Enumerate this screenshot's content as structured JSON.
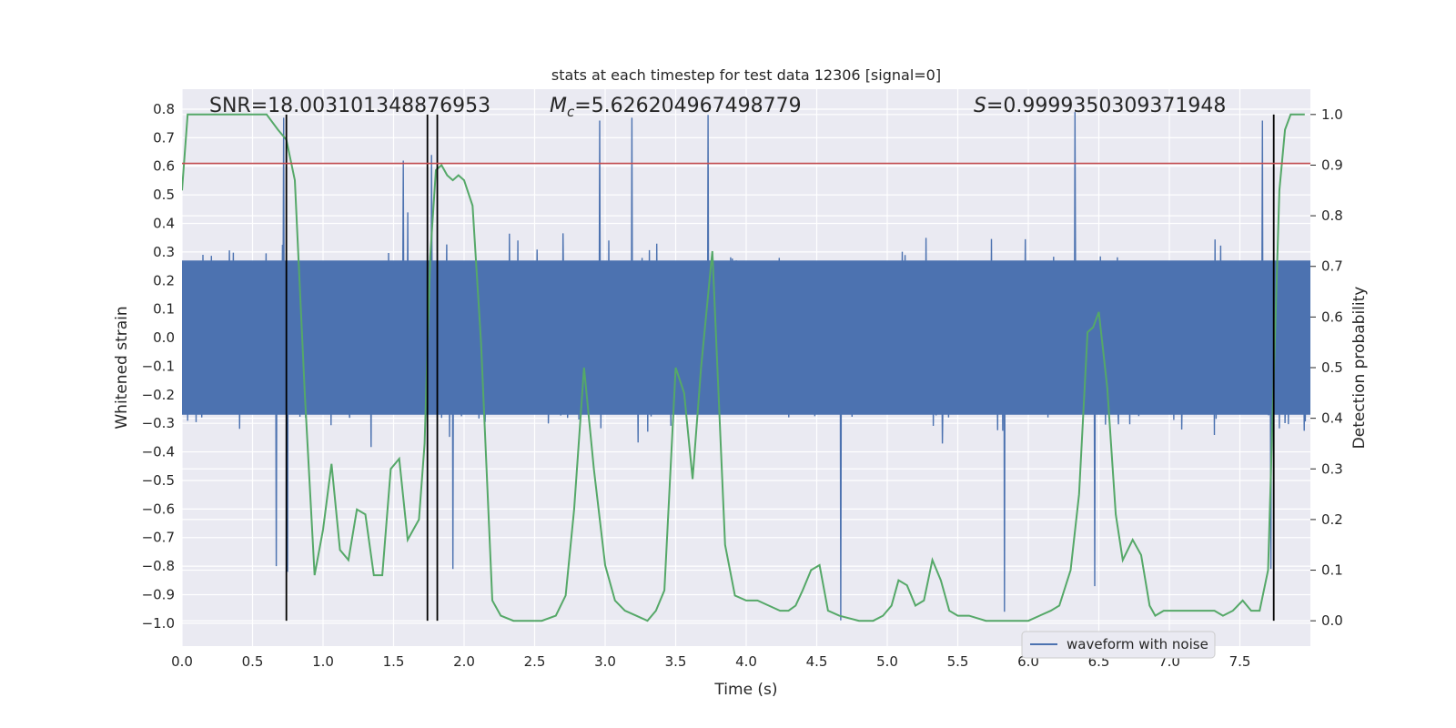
{
  "chart_data": {
    "type": "line",
    "title": "stats at each timestep for test data 12306 [signal=0]",
    "xlabel": "Time (s)",
    "ylabel_left": "Whitened strain",
    "ylabel_right": "Detection probability",
    "xlim": [
      0.0,
      8.0
    ],
    "ylim_left": [
      -1.08,
      0.87
    ],
    "ylim_right": [
      -0.05,
      1.05
    ],
    "x_ticks": [
      0.0,
      0.5,
      1.0,
      1.5,
      2.0,
      2.5,
      3.0,
      3.5,
      4.0,
      4.5,
      5.0,
      5.5,
      6.0,
      6.5,
      7.0,
      7.5
    ],
    "y_ticks_left": [
      -1.0,
      -0.9,
      -0.8,
      -0.7,
      -0.6,
      -0.5,
      -0.4,
      -0.3,
      -0.2,
      -0.1,
      0.0,
      0.1,
      0.2,
      0.3,
      0.4,
      0.5,
      0.6,
      0.7,
      0.8
    ],
    "y_ticks_right": [
      0.0,
      0.1,
      0.2,
      0.3,
      0.4,
      0.5,
      0.6,
      0.7,
      0.8,
      0.9,
      1.0
    ],
    "annotations": {
      "snr": "SNR=18.003101348876953",
      "mc_symbol": "M",
      "mc_sub": "c",
      "mc_value": "=5.626204967498779",
      "s_symbol": "S",
      "s_value": "=0.9999350309371948"
    },
    "threshold": {
      "y_left": 0.61,
      "color": "#c44e52"
    },
    "vertical_markers_x": [
      0.74,
      1.74,
      1.81,
      7.74
    ],
    "series": [
      {
        "name": "waveform with noise",
        "color": "#4c72b0",
        "kind": "noise",
        "n_samples": 2000,
        "band_core": 0.27,
        "typical_amplitude": 0.35,
        "peaks": [
          {
            "x": 0.72,
            "y": 0.77
          },
          {
            "x": 0.75,
            "y": -0.82
          },
          {
            "x": 0.67,
            "y": -0.8
          },
          {
            "x": 1.57,
            "y": 0.62
          },
          {
            "x": 1.77,
            "y": 0.64
          },
          {
            "x": 1.92,
            "y": -0.81
          },
          {
            "x": 2.96,
            "y": 0.76
          },
          {
            "x": 3.19,
            "y": 0.77
          },
          {
            "x": 3.73,
            "y": 0.78
          },
          {
            "x": 4.67,
            "y": -0.99
          },
          {
            "x": 5.83,
            "y": -0.96
          },
          {
            "x": 6.33,
            "y": 0.79
          },
          {
            "x": 6.47,
            "y": -0.87
          },
          {
            "x": 7.66,
            "y": 0.76
          },
          {
            "x": 7.72,
            "y": -0.81
          }
        ]
      },
      {
        "name": "detection probability",
        "color": "#55a868",
        "axis": "right",
        "x": [
          0.0,
          0.04,
          0.1,
          0.2,
          0.3,
          0.4,
          0.5,
          0.6,
          0.68,
          0.74,
          0.8,
          0.87,
          0.94,
          1.0,
          1.06,
          1.12,
          1.18,
          1.24,
          1.3,
          1.36,
          1.42,
          1.48,
          1.54,
          1.6,
          1.64,
          1.68,
          1.72,
          1.76,
          1.8,
          1.84,
          1.88,
          1.92,
          1.96,
          2.0,
          2.06,
          2.12,
          2.2,
          2.26,
          2.35,
          2.45,
          2.55,
          2.65,
          2.72,
          2.78,
          2.85,
          2.92,
          3.0,
          3.07,
          3.14,
          3.22,
          3.3,
          3.36,
          3.42,
          3.5,
          3.56,
          3.62,
          3.68,
          3.76,
          3.85,
          3.92,
          4.0,
          4.08,
          4.16,
          4.24,
          4.3,
          4.35,
          4.4,
          4.46,
          4.52,
          4.58,
          4.66,
          4.8,
          4.9,
          4.97,
          5.03,
          5.08,
          5.14,
          5.2,
          5.26,
          5.32,
          5.38,
          5.44,
          5.5,
          5.58,
          5.7,
          5.85,
          6.0,
          6.08,
          6.16,
          6.22,
          6.3,
          6.36,
          6.42,
          6.46,
          6.5,
          6.56,
          6.62,
          6.67,
          6.74,
          6.8,
          6.86,
          6.9,
          6.96,
          7.05,
          7.15,
          7.25,
          7.32,
          7.38,
          7.45,
          7.52,
          7.58,
          7.64,
          7.7,
          7.74,
          7.78,
          7.82,
          7.86,
          7.92,
          7.96
        ],
        "y": [
          0.85,
          1.0,
          1.0,
          1.0,
          1.0,
          1.0,
          1.0,
          1.0,
          0.97,
          0.95,
          0.87,
          0.45,
          0.09,
          0.18,
          0.31,
          0.14,
          0.12,
          0.22,
          0.21,
          0.09,
          0.09,
          0.3,
          0.32,
          0.16,
          0.18,
          0.2,
          0.35,
          0.72,
          0.89,
          0.9,
          0.88,
          0.87,
          0.88,
          0.87,
          0.82,
          0.55,
          0.04,
          0.01,
          0.0,
          0.0,
          0.0,
          0.01,
          0.05,
          0.22,
          0.5,
          0.3,
          0.11,
          0.04,
          0.02,
          0.01,
          0.0,
          0.02,
          0.06,
          0.5,
          0.45,
          0.28,
          0.5,
          0.73,
          0.15,
          0.05,
          0.04,
          0.04,
          0.03,
          0.02,
          0.02,
          0.03,
          0.06,
          0.1,
          0.11,
          0.02,
          0.01,
          0.0,
          0.0,
          0.01,
          0.03,
          0.08,
          0.07,
          0.03,
          0.04,
          0.12,
          0.08,
          0.02,
          0.01,
          0.01,
          0.0,
          0.0,
          0.0,
          0.01,
          0.02,
          0.03,
          0.1,
          0.25,
          0.57,
          0.58,
          0.61,
          0.46,
          0.21,
          0.12,
          0.16,
          0.13,
          0.03,
          0.01,
          0.02,
          0.02,
          0.02,
          0.02,
          0.02,
          0.01,
          0.02,
          0.04,
          0.02,
          0.02,
          0.1,
          0.48,
          0.85,
          0.97,
          1.0,
          1.0,
          1.0
        ]
      }
    ],
    "legend": {
      "position": "lower-right",
      "entries": [
        "waveform with noise"
      ]
    },
    "grid": true,
    "colors": {
      "plot_background": "#eaeaf2",
      "grid": "#ffffff",
      "marker": "#000000"
    }
  }
}
